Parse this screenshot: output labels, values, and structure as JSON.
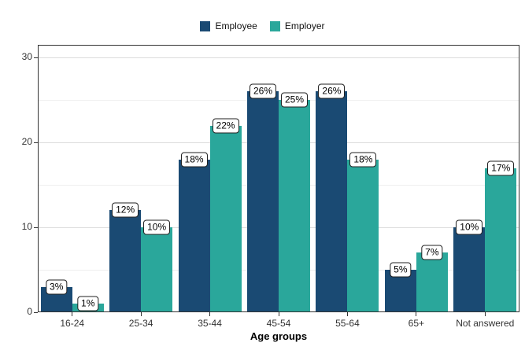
{
  "chart_data": {
    "type": "bar",
    "title": "",
    "xlabel": "Age groups",
    "ylabel": "",
    "categories": [
      "16-24",
      "25-34",
      "35-44",
      "45-54",
      "55-64",
      "65+",
      "Not answered"
    ],
    "series": [
      {
        "name": "Employee",
        "color": "#1a4a73",
        "values": [
          3,
          12,
          18,
          26,
          26,
          5,
          10
        ],
        "labels": [
          "3%",
          "12%",
          "18%",
          "26%",
          "26%",
          "5%",
          "10%"
        ]
      },
      {
        "name": "Employer",
        "color": "#2aa79b",
        "values": [
          1,
          10,
          22,
          25,
          18,
          7,
          17
        ],
        "labels": [
          "1%",
          "10%",
          "22%",
          "25%",
          "18%",
          "7%",
          "17%"
        ]
      }
    ],
    "ylim": [
      0,
      31.5
    ],
    "y_ticks": [
      0,
      10,
      20,
      30
    ],
    "y_minor_ticks": [
      5,
      15,
      25
    ],
    "grid": true,
    "legend_position": "top",
    "value_label_style": "white-rounded-box"
  }
}
